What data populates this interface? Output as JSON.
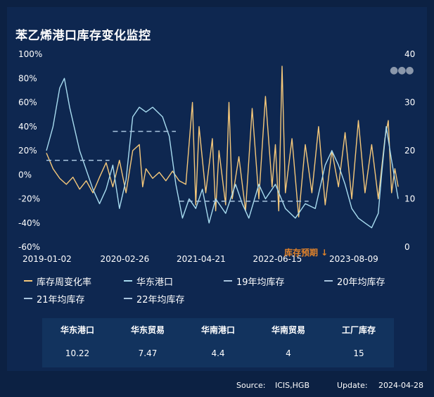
{
  "title": "苯乙烯港口库存变化监控",
  "more_icon": "more-dots-icon",
  "chart_data": {
    "type": "line",
    "x_ticks": [
      "2019-01-02",
      "2020-02-26",
      "2021-04-21",
      "2022-06-15",
      "2023-08-09"
    ],
    "x_range": [
      "2019-01-02",
      "2024-04-24"
    ],
    "y_left": {
      "ticks": [
        "100%",
        "80%",
        "60%",
        "40%",
        "20%",
        "0%",
        "-20%",
        "-40%",
        "-60%"
      ],
      "range": [
        -60,
        100
      ]
    },
    "y_right": {
      "ticks": [
        "40",
        "30",
        "20",
        "10",
        "0"
      ],
      "range": [
        0,
        40
      ]
    },
    "annotation": "库存预期 ↓",
    "series": [
      {
        "name": "库存周变化率",
        "axis": "left",
        "color": "#f5c87a",
        "style": "solid",
        "points": [
          [
            2019.0,
            18
          ],
          [
            2019.1,
            5
          ],
          [
            2019.2,
            -3
          ],
          [
            2019.3,
            -8
          ],
          [
            2019.4,
            -2
          ],
          [
            2019.5,
            -12
          ],
          [
            2019.6,
            -5
          ],
          [
            2019.7,
            -15
          ],
          [
            2019.8,
            -2
          ],
          [
            2019.9,
            10
          ],
          [
            2020.0,
            -10
          ],
          [
            2020.1,
            12
          ],
          [
            2020.2,
            -15
          ],
          [
            2020.3,
            20
          ],
          [
            2020.4,
            25
          ],
          [
            2020.45,
            -10
          ],
          [
            2020.5,
            5
          ],
          [
            2020.6,
            -3
          ],
          [
            2020.7,
            2
          ],
          [
            2020.8,
            -5
          ],
          [
            2020.9,
            3
          ],
          [
            2021.0,
            -5
          ],
          [
            2021.1,
            -8
          ],
          [
            2021.2,
            60
          ],
          [
            2021.25,
            -25
          ],
          [
            2021.3,
            40
          ],
          [
            2021.4,
            -15
          ],
          [
            2021.5,
            30
          ],
          [
            2021.55,
            -30
          ],
          [
            2021.6,
            20
          ],
          [
            2021.7,
            -25
          ],
          [
            2021.75,
            60
          ],
          [
            2021.8,
            -20
          ],
          [
            2021.9,
            15
          ],
          [
            2022.0,
            -30
          ],
          [
            2022.1,
            55
          ],
          [
            2022.2,
            -20
          ],
          [
            2022.3,
            65
          ],
          [
            2022.4,
            -10
          ],
          [
            2022.45,
            25
          ],
          [
            2022.5,
            -30
          ],
          [
            2022.55,
            90
          ],
          [
            2022.6,
            -15
          ],
          [
            2022.7,
            30
          ],
          [
            2022.8,
            -35
          ],
          [
            2022.9,
            25
          ],
          [
            2023.0,
            -15
          ],
          [
            2023.1,
            40
          ],
          [
            2023.2,
            -25
          ],
          [
            2023.3,
            20
          ],
          [
            2023.4,
            -10
          ],
          [
            2023.5,
            35
          ],
          [
            2023.6,
            -20
          ],
          [
            2023.7,
            45
          ],
          [
            2023.8,
            -15
          ],
          [
            2023.9,
            25
          ],
          [
            2024.0,
            -20
          ],
          [
            2024.1,
            30
          ],
          [
            2024.15,
            45
          ],
          [
            2024.2,
            -15
          ],
          [
            2024.25,
            5
          ],
          [
            2024.3,
            -10
          ]
        ]
      },
      {
        "name": "华东港口",
        "axis": "right",
        "color": "#a8dcf0",
        "style": "solid",
        "points": [
          [
            2019.0,
            20
          ],
          [
            2019.1,
            25
          ],
          [
            2019.2,
            33
          ],
          [
            2019.27,
            35
          ],
          [
            2019.35,
            29
          ],
          [
            2019.5,
            20
          ],
          [
            2019.7,
            12
          ],
          [
            2019.8,
            9
          ],
          [
            2019.9,
            12
          ],
          [
            2020.0,
            17
          ],
          [
            2020.1,
            8
          ],
          [
            2020.2,
            14
          ],
          [
            2020.3,
            27
          ],
          [
            2020.4,
            29
          ],
          [
            2020.5,
            28
          ],
          [
            2020.6,
            29
          ],
          [
            2020.75,
            27
          ],
          [
            2020.85,
            23
          ],
          [
            2020.95,
            13
          ],
          [
            2021.05,
            6
          ],
          [
            2021.15,
            10
          ],
          [
            2021.25,
            8
          ],
          [
            2021.35,
            12
          ],
          [
            2021.45,
            5
          ],
          [
            2021.55,
            10
          ],
          [
            2021.7,
            7
          ],
          [
            2021.85,
            13
          ],
          [
            2021.95,
            9
          ],
          [
            2022.05,
            6
          ],
          [
            2022.2,
            13
          ],
          [
            2022.3,
            10
          ],
          [
            2022.45,
            13
          ],
          [
            2022.6,
            8
          ],
          [
            2022.75,
            6
          ],
          [
            2022.9,
            9
          ],
          [
            2023.05,
            8
          ],
          [
            2023.2,
            17
          ],
          [
            2023.3,
            20
          ],
          [
            2023.4,
            17
          ],
          [
            2023.5,
            13
          ],
          [
            2023.6,
            8
          ],
          [
            2023.7,
            6
          ],
          [
            2023.8,
            5
          ],
          [
            2023.9,
            4
          ],
          [
            2024.0,
            7
          ],
          [
            2024.05,
            15
          ],
          [
            2024.12,
            25
          ],
          [
            2024.2,
            18
          ],
          [
            2024.3,
            10
          ]
        ]
      },
      {
        "name": "19年均库存",
        "axis": "right",
        "color": "#a8c4de",
        "style": "dashed",
        "points": [
          [
            2019.0,
            18
          ],
          [
            2019.95,
            18
          ]
        ]
      },
      {
        "name": "20年均库存",
        "axis": "right",
        "color": "#a8c4de",
        "style": "dashed",
        "points": [
          [
            2020.0,
            24
          ],
          [
            2020.95,
            24
          ]
        ]
      },
      {
        "name": "21年均库存",
        "axis": "right",
        "color": "#a8c4de",
        "style": "dashed",
        "points": [
          [
            2021.0,
            9.5
          ],
          [
            2021.95,
            9.5
          ]
        ]
      },
      {
        "name": "22年均库存",
        "axis": "right",
        "color": "#a8c4de",
        "style": "dashed",
        "points": [
          [
            2022.0,
            9.5
          ],
          [
            2022.95,
            9.5
          ]
        ]
      }
    ]
  },
  "legend": [
    "库存周变化率",
    "华东港口",
    "19年均库存",
    "20年均库存",
    "21年均库存",
    "22年均库存"
  ],
  "table": {
    "headers": [
      "华东港口",
      "华东贸易",
      "华南港口",
      "华南贸易",
      "工厂库存"
    ],
    "values": [
      "10.22",
      "7.47",
      "4.4",
      "4",
      "15"
    ]
  },
  "footer": {
    "source_label": "Source:",
    "source_value": "ICIS,HGB",
    "update_label": "Update:",
    "update_value": "2024-04-28"
  },
  "colors": {
    "background": "#0c2143",
    "panel": "#0e2750",
    "table_bg": "#12335e",
    "accent": "#e0822a"
  }
}
